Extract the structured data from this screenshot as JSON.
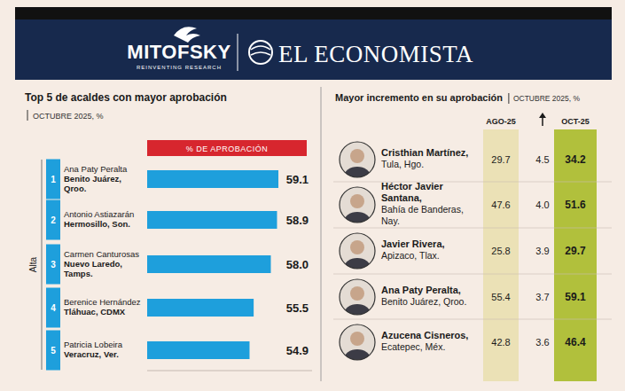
{
  "header": {
    "brand": "MITOFSKY",
    "tagline": "REINVENTING RESEARCH",
    "publication": "EL ECONOMISTA"
  },
  "chart_data": {
    "type": "bar",
    "orientation": "horizontal",
    "title": "Top 5 de acaldes con mayor aprobación",
    "subtitle": "OCTUBRE 2025, %",
    "value_header": "% DE APROBACIÓN",
    "axis_label": "Alta",
    "ranks": [
      1,
      2,
      3,
      4,
      5
    ],
    "categories": [
      "Ana Paty Peralta",
      "Antonio Astiazarán",
      "Carmen Canturosas",
      "Berenice Hernández",
      "Patricia Lobeira"
    ],
    "locations": [
      "Benito Juárez, Qroo.",
      "Hermosillo, Son.",
      "Nuevo Laredo, Tamps.",
      "Tláhuac, CDMX",
      "Veracruz, Ver."
    ],
    "values": [
      59.1,
      58.9,
      58.0,
      55.5,
      54.9
    ],
    "value_labels": [
      "59.1",
      "58.9",
      "58.0",
      "55.5",
      "54.9"
    ],
    "color": "#1e9fdc",
    "xlim": [
      40,
      64
    ],
    "xticks": [],
    "tick_labels": false,
    "grid": false,
    "data_labels": true
  },
  "table": {
    "title": "Mayor incremento en su aprobación",
    "subtitle": "OCTUBRE 2025, %",
    "columns": [
      "AGO-25",
      "OCT-25"
    ],
    "rows": [
      {
        "name": "Cristhian Martínez,",
        "location": "Tula, Hgo.",
        "ago": "29.7",
        "change": "4.5",
        "oct": "34.2"
      },
      {
        "name": "Héctor Javier Santana,",
        "location": "Bahía de Banderas, Nay.",
        "ago": "47.6",
        "change": "4.0",
        "oct": "51.6"
      },
      {
        "name": "Javier Rivera,",
        "location": "Apizaco, Tlax.",
        "ago": "25.8",
        "change": "3.9",
        "oct": "29.7"
      },
      {
        "name": "Ana Paty Peralta,",
        "location": "Benito Juárez, Qroo.",
        "ago": "55.4",
        "change": "3.7",
        "oct": "59.1"
      },
      {
        "name": "Azucena Cisneros,",
        "location": "Ecatepec, Méx.",
        "ago": "42.8",
        "change": "3.6",
        "oct": "46.4"
      }
    ]
  }
}
